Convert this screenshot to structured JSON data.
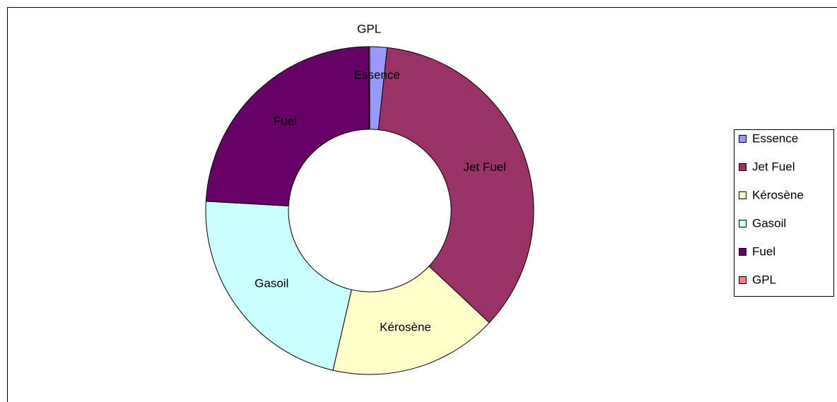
{
  "chart_data": {
    "type": "donut",
    "categories": [
      "Essence",
      "Jet Fuel",
      "Kérosène",
      "Gasoil",
      "Fuel",
      "GPL"
    ],
    "values": [
      1.7,
      35.3,
      16.6,
      22.3,
      24.0,
      0.1
    ],
    "colors": [
      "#9999ff",
      "#993366",
      "#ffffcc",
      "#ccffff",
      "#660066",
      "#ff8080"
    ],
    "legend": "right"
  }
}
